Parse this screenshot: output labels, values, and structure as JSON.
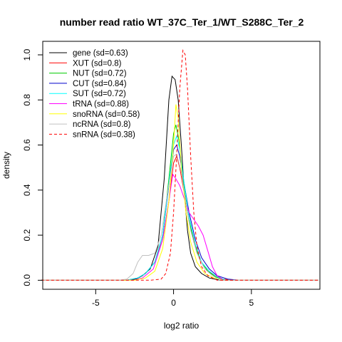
{
  "chart_data": {
    "type": "line",
    "title": "number read ratio WT_37C_Ter_1/WT_S288C_Ter_2",
    "xlabel": "log2 ratio",
    "ylabel": "density",
    "xlim": [
      -8.4,
      9.4
    ],
    "ylim": [
      -0.04,
      1.06
    ],
    "xticks": [
      -5,
      0,
      5
    ],
    "yticks": [
      0.0,
      0.2,
      0.4,
      0.6,
      0.8,
      1.0
    ],
    "xtick_labels": [
      "-5",
      "0",
      "5"
    ],
    "ytick_labels": [
      "0.0",
      "0.2",
      "0.4",
      "0.6",
      "0.8",
      "1.0"
    ],
    "grid": false,
    "legend_position": "top-left",
    "series": [
      {
        "name": "gene (sd=0.63)",
        "color": "#000000",
        "dash": false,
        "points": [
          [
            -8.5,
            0
          ],
          [
            -3,
            0
          ],
          [
            -2.4,
            0.005
          ],
          [
            -2,
            0.02
          ],
          [
            -1.5,
            0.05
          ],
          [
            -1,
            0.15
          ],
          [
            -0.6,
            0.45
          ],
          [
            -0.3,
            0.8
          ],
          [
            -0.1,
            0.905
          ],
          [
            0.1,
            0.89
          ],
          [
            0.3,
            0.8
          ],
          [
            0.5,
            0.6
          ],
          [
            0.7,
            0.38
          ],
          [
            0.9,
            0.22
          ],
          [
            1.1,
            0.12
          ],
          [
            1.4,
            0.06
          ],
          [
            1.8,
            0.03
          ],
          [
            2.3,
            0.01
          ],
          [
            3,
            0
          ],
          [
            9.3,
            0
          ]
        ]
      },
      {
        "name": "XUT (sd=0.8)",
        "color": "#ff0000",
        "dash": false,
        "points": [
          [
            -8.5,
            0
          ],
          [
            -3,
            0
          ],
          [
            -2.3,
            0.01
          ],
          [
            -1.8,
            0.03
          ],
          [
            -1.2,
            0.08
          ],
          [
            -0.7,
            0.18
          ],
          [
            -0.3,
            0.35
          ],
          [
            0,
            0.52
          ],
          [
            0.2,
            0.55
          ],
          [
            0.4,
            0.5
          ],
          [
            0.7,
            0.38
          ],
          [
            1,
            0.26
          ],
          [
            1.4,
            0.15
          ],
          [
            1.8,
            0.08
          ],
          [
            2.2,
            0.04
          ],
          [
            2.7,
            0.02
          ],
          [
            3.2,
            0.005
          ],
          [
            4,
            0
          ],
          [
            9.3,
            0
          ]
        ]
      },
      {
        "name": "NUT (sd=0.72)",
        "color": "#00cc00",
        "dash": false,
        "points": [
          [
            -8.5,
            0
          ],
          [
            -3,
            0
          ],
          [
            -2.3,
            0.01
          ],
          [
            -1.8,
            0.03
          ],
          [
            -1.2,
            0.08
          ],
          [
            -0.7,
            0.2
          ],
          [
            -0.3,
            0.45
          ],
          [
            0,
            0.65
          ],
          [
            0.15,
            0.69
          ],
          [
            0.35,
            0.62
          ],
          [
            0.6,
            0.45
          ],
          [
            0.9,
            0.3
          ],
          [
            1.3,
            0.17
          ],
          [
            1.7,
            0.09
          ],
          [
            2.2,
            0.04
          ],
          [
            2.7,
            0.015
          ],
          [
            3.3,
            0
          ],
          [
            9.3,
            0
          ]
        ]
      },
      {
        "name": "CUT (sd=0.84)",
        "color": "#0000cc",
        "dash": false,
        "points": [
          [
            -8.5,
            0
          ],
          [
            -3,
            0
          ],
          [
            -2.3,
            0.01
          ],
          [
            -1.8,
            0.03
          ],
          [
            -1.2,
            0.08
          ],
          [
            -0.7,
            0.2
          ],
          [
            -0.3,
            0.42
          ],
          [
            0,
            0.58
          ],
          [
            0.2,
            0.6
          ],
          [
            0.4,
            0.55
          ],
          [
            0.7,
            0.42
          ],
          [
            1,
            0.3
          ],
          [
            1.4,
            0.18
          ],
          [
            1.8,
            0.1
          ],
          [
            2.3,
            0.05
          ],
          [
            2.8,
            0.02
          ],
          [
            3.5,
            0.005
          ],
          [
            4.2,
            0
          ],
          [
            9.3,
            0
          ]
        ]
      },
      {
        "name": "SUT (sd=0.72)",
        "color": "#00ffff",
        "dash": false,
        "points": [
          [
            -8.5,
            0
          ],
          [
            -3,
            0
          ],
          [
            -2.3,
            0.01
          ],
          [
            -1.8,
            0.03
          ],
          [
            -1.2,
            0.08
          ],
          [
            -0.7,
            0.2
          ],
          [
            -0.3,
            0.43
          ],
          [
            0,
            0.6
          ],
          [
            0.2,
            0.64
          ],
          [
            0.4,
            0.58
          ],
          [
            0.7,
            0.42
          ],
          [
            1,
            0.28
          ],
          [
            1.4,
            0.16
          ],
          [
            1.8,
            0.08
          ],
          [
            2.3,
            0.04
          ],
          [
            2.8,
            0.015
          ],
          [
            3.4,
            0
          ],
          [
            9.3,
            0
          ]
        ]
      },
      {
        "name": "tRNA (sd=0.88)",
        "color": "#ff00ff",
        "dash": false,
        "points": [
          [
            -8.5,
            0
          ],
          [
            -2.6,
            0
          ],
          [
            -2,
            0.01
          ],
          [
            -1.3,
            0.05
          ],
          [
            -0.7,
            0.18
          ],
          [
            -0.3,
            0.35
          ],
          [
            -0.05,
            0.47
          ],
          [
            0.15,
            0.45
          ],
          [
            0.4,
            0.42
          ],
          [
            0.7,
            0.36
          ],
          [
            1,
            0.3
          ],
          [
            1.3,
            0.27
          ],
          [
            1.6,
            0.24
          ],
          [
            1.9,
            0.2
          ],
          [
            2.2,
            0.13
          ],
          [
            2.5,
            0.06
          ],
          [
            2.8,
            0.02
          ],
          [
            3.2,
            0
          ],
          [
            9.3,
            0
          ]
        ]
      },
      {
        "name": "snoRNA (sd=0.58)",
        "color": "#ffff00",
        "dash": false,
        "points": [
          [
            -8.5,
            0
          ],
          [
            -2.5,
            0
          ],
          [
            -1.8,
            0.01
          ],
          [
            -1.2,
            0.04
          ],
          [
            -0.7,
            0.14
          ],
          [
            -0.3,
            0.35
          ],
          [
            0,
            0.6
          ],
          [
            0.15,
            0.78
          ],
          [
            0.3,
            0.72
          ],
          [
            0.5,
            0.5
          ],
          [
            0.8,
            0.3
          ],
          [
            1.1,
            0.17
          ],
          [
            1.5,
            0.08
          ],
          [
            2,
            0.03
          ],
          [
            2.6,
            0.01
          ],
          [
            3.2,
            0
          ],
          [
            9.3,
            0
          ]
        ]
      },
      {
        "name": "ncRNA (sd=0.8)",
        "color": "#c0c0c0",
        "dash": false,
        "points": [
          [
            -8.5,
            0
          ],
          [
            -3.5,
            0
          ],
          [
            -3,
            0.005
          ],
          [
            -2.6,
            0.03
          ],
          [
            -2.3,
            0.08
          ],
          [
            -2,
            0.11
          ],
          [
            -1.6,
            0.11
          ],
          [
            -1.2,
            0.12
          ],
          [
            -0.8,
            0.2
          ],
          [
            -0.4,
            0.38
          ],
          [
            0,
            0.55
          ],
          [
            0.2,
            0.56
          ],
          [
            0.5,
            0.48
          ],
          [
            0.8,
            0.34
          ],
          [
            1.1,
            0.22
          ],
          [
            1.5,
            0.12
          ],
          [
            2,
            0.05
          ],
          [
            2.5,
            0.02
          ],
          [
            3,
            0
          ],
          [
            9.3,
            0
          ]
        ]
      },
      {
        "name": "snRNA (sd=0.38)",
        "color": "#ff0000",
        "dash": true,
        "points": [
          [
            -8.5,
            0
          ],
          [
            -1.5,
            0
          ],
          [
            -0.8,
            0.005
          ],
          [
            -0.5,
            0.03
          ],
          [
            -0.2,
            0.12
          ],
          [
            0,
            0.3
          ],
          [
            0.2,
            0.55
          ],
          [
            0.4,
            0.85
          ],
          [
            0.6,
            1.02
          ],
          [
            0.75,
            1.0
          ],
          [
            0.9,
            0.85
          ],
          [
            1.1,
            0.55
          ],
          [
            1.3,
            0.3
          ],
          [
            1.5,
            0.15
          ],
          [
            1.8,
            0.06
          ],
          [
            2.2,
            0.02
          ],
          [
            2.8,
            0
          ],
          [
            9.3,
            0
          ]
        ]
      }
    ]
  }
}
